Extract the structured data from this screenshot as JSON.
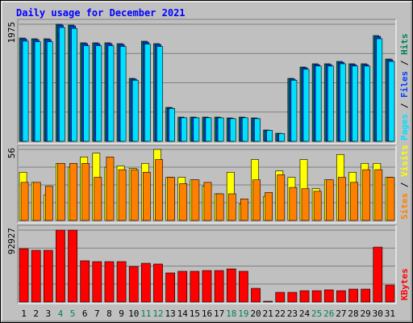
{
  "chart_data": [
    {
      "type": "bar",
      "title": "Daily usage for December 2021",
      "legend_separator": "/",
      "ylim": [
        0,
        1975
      ],
      "yticks": [
        1975
      ],
      "series": [
        {
          "name": "Hits",
          "color": "#00805c",
          "values": [
            1743,
            1730,
            1730,
            1975,
            1961,
            1662,
            1662,
            1662,
            1648,
            1062,
            1689,
            1648,
            572,
            409,
            409,
            409,
            409,
            395,
            409,
            395,
            191,
            136,
            1062,
            1253,
            1308,
            1308,
            1348,
            1308,
            1308,
            1784,
            1389
          ]
        },
        {
          "name": "Files",
          "color": "#0040ff",
          "values": [
            1728,
            1715,
            1716,
            1960,
            1946,
            1648,
            1647,
            1648,
            1633,
            1050,
            1674,
            1634,
            562,
            400,
            399,
            400,
            398,
            386,
            399,
            386,
            186,
            131,
            1050,
            1240,
            1293,
            1294,
            1333,
            1294,
            1293,
            1767,
            1375
          ]
        },
        {
          "name": "Pages",
          "color": "#00e0ff",
          "values": [
            1690,
            1680,
            1679,
            1920,
            1905,
            1612,
            1613,
            1612,
            1600,
            1030,
            1640,
            1600,
            555,
            397,
            396,
            397,
            396,
            383,
            397,
            383,
            185,
            131,
            1030,
            1215,
            1270,
            1269,
            1308,
            1270,
            1269,
            1730,
            1347
          ]
        }
      ]
    },
    {
      "type": "bar",
      "legend_separator": "/",
      "ylim": [
        0,
        56
      ],
      "yticks": [
        56
      ],
      "series": [
        {
          "name": "Visits",
          "color": "#ffff00",
          "values": [
            38,
            30,
            20,
            45,
            42,
            50,
            53,
            42,
            43,
            41,
            45,
            56,
            34,
            34,
            32,
            27,
            21,
            38,
            13,
            48,
            19,
            39,
            34,
            48,
            25,
            32,
            52,
            38,
            45,
            45,
            34
          ]
        },
        {
          "name": "Sites",
          "color": "#ff8000",
          "values": [
            30,
            30,
            27,
            45,
            45,
            45,
            34,
            50,
            40,
            40,
            38,
            48,
            34,
            29,
            32,
            30,
            21,
            21,
            17,
            32,
            22,
            36,
            26,
            25,
            23,
            32,
            34,
            30,
            40,
            40,
            34
          ]
        }
      ]
    },
    {
      "type": "bar",
      "ylim": [
        0,
        92927
      ],
      "yticks": [
        92927
      ],
      "categories": [
        "1",
        "2",
        "3",
        "4",
        "5",
        "6",
        "7",
        "8",
        "9",
        "10",
        "11",
        "12",
        "13",
        "14",
        "15",
        "16",
        "17",
        "18",
        "19",
        "20",
        "21",
        "22",
        "23",
        "24",
        "25",
        "26",
        "27",
        "28",
        "29",
        "30",
        "31"
      ],
      "highlight_categories": [
        "4",
        "5",
        "11",
        "12",
        "18",
        "19",
        "25",
        "26"
      ],
      "highlight_color": "#00805c",
      "series": [
        {
          "name": "KBytes",
          "color": "#ff0000",
          "values": [
            68900,
            66800,
            66800,
            92927,
            92927,
            53300,
            52200,
            52200,
            52200,
            45900,
            50100,
            49100,
            37600,
            39700,
            39700,
            40700,
            40700,
            42800,
            39700,
            17700,
            1000,
            12500,
            12500,
            14600,
            14600,
            15700,
            14600,
            16700,
            16700,
            71000,
            21900
          ]
        }
      ]
    }
  ]
}
